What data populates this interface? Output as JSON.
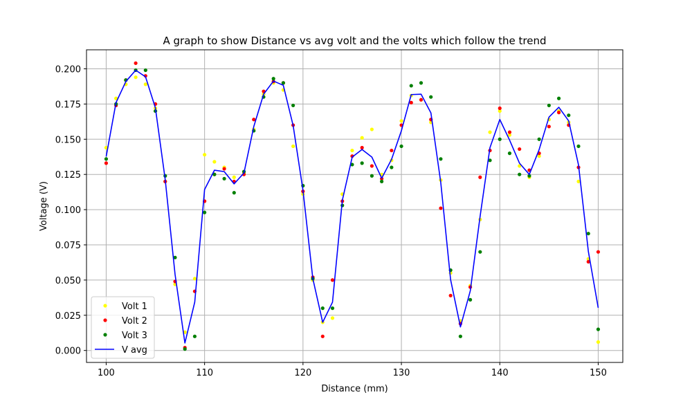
{
  "chart_data": {
    "type": "line",
    "title": "A graph to show Distance vs avg volt and the volts which follow the trend",
    "xlabel": "Distance (mm)",
    "ylabel": "Voltage (V)",
    "xlim": [
      98,
      152.5
    ],
    "ylim": [
      -0.0085,
      0.2135
    ],
    "x_ticks": [
      100,
      110,
      120,
      130,
      140,
      150
    ],
    "y_ticks": [
      0.0,
      0.025,
      0.05,
      0.075,
      0.1,
      0.125,
      0.15,
      0.175,
      0.2
    ],
    "y_tick_labels": [
      "0.000",
      "0.025",
      "0.050",
      "0.075",
      "0.100",
      "0.125",
      "0.150",
      "0.175",
      "0.200"
    ],
    "grid": true,
    "legend_position": "lower-left",
    "x": [
      100,
      101,
      102,
      103,
      104,
      105,
      106,
      107,
      108,
      109,
      110,
      111,
      112,
      113,
      114,
      115,
      116,
      117,
      118,
      119,
      120,
      121,
      122,
      123,
      124,
      125,
      126,
      127,
      128,
      129,
      130,
      131,
      132,
      133,
      134,
      135,
      136,
      137,
      138,
      139,
      140,
      141,
      142,
      143,
      144,
      145,
      146,
      147,
      148,
      149,
      150
    ],
    "series": [
      {
        "name": "Volt 1",
        "style": "points",
        "color": "#ffff00",
        "values": [
          0.144,
          0.179,
          0.189,
          0.194,
          0.189,
          0.172,
          0.12,
          0.047,
          0.013,
          0.051,
          0.139,
          0.134,
          0.13,
          0.123,
          0.126,
          0.157,
          0.182,
          0.19,
          0.185,
          0.145,
          0.111,
          0.05,
          0.02,
          0.023,
          0.111,
          0.142,
          0.151,
          0.157,
          0.125,
          0.135,
          0.163,
          0.181,
          0.178,
          0.162,
          0.121,
          0.055,
          0.021,
          0.046,
          0.093,
          0.155,
          0.17,
          0.153,
          0.131,
          0.123,
          0.138,
          0.164,
          0.17,
          0.162,
          0.12,
          0.065,
          0.006
        ]
      },
      {
        "name": "Volt 2",
        "style": "points",
        "color": "#ff0000",
        "values": [
          0.133,
          0.174,
          0.192,
          0.204,
          0.195,
          0.175,
          0.12,
          0.049,
          0.002,
          0.042,
          0.106,
          0.125,
          0.129,
          0.12,
          0.125,
          0.164,
          0.184,
          0.191,
          0.19,
          0.16,
          0.113,
          0.052,
          0.01,
          0.05,
          0.106,
          0.138,
          0.144,
          0.131,
          0.122,
          0.142,
          0.16,
          0.176,
          0.178,
          0.164,
          0.101,
          0.039,
          0.019,
          0.045,
          0.123,
          0.142,
          0.172,
          0.155,
          0.143,
          0.128,
          0.14,
          0.159,
          0.169,
          0.16,
          0.13,
          0.063,
          0.07
        ]
      },
      {
        "name": "Volt 3",
        "style": "points",
        "color": "#008000",
        "values": [
          0.136,
          0.175,
          0.192,
          0.199,
          0.199,
          0.17,
          0.124,
          0.066,
          0.001,
          0.01,
          0.098,
          0.125,
          0.122,
          0.112,
          0.127,
          0.156,
          0.18,
          0.193,
          0.19,
          0.174,
          0.117,
          0.051,
          0.03,
          0.03,
          0.103,
          0.132,
          0.133,
          0.124,
          0.12,
          0.13,
          0.145,
          0.188,
          0.19,
          0.18,
          0.136,
          0.057,
          0.01,
          0.036,
          0.07,
          0.135,
          0.15,
          0.14,
          0.125,
          0.124,
          0.15,
          0.174,
          0.179,
          0.167,
          0.145,
          0.083,
          0.015
        ]
      },
      {
        "name": "V avg",
        "style": "line",
        "color": "#0000ff",
        "values": [
          0.1377,
          0.176,
          0.191,
          0.199,
          0.1943,
          0.1723,
          0.1213,
          0.054,
          0.0053,
          0.0343,
          0.1143,
          0.128,
          0.127,
          0.1183,
          0.126,
          0.159,
          0.182,
          0.1913,
          0.1883,
          0.1597,
          0.1137,
          0.051,
          0.02,
          0.0343,
          0.1067,
          0.1373,
          0.1427,
          0.1373,
          0.1223,
          0.1357,
          0.156,
          0.1817,
          0.182,
          0.1687,
          0.1193,
          0.0503,
          0.0167,
          0.0423,
          0.0953,
          0.144,
          0.164,
          0.1493,
          0.133,
          0.125,
          0.1427,
          0.1657,
          0.1727,
          0.163,
          0.1317,
          0.0703,
          0.0303
        ]
      }
    ]
  }
}
